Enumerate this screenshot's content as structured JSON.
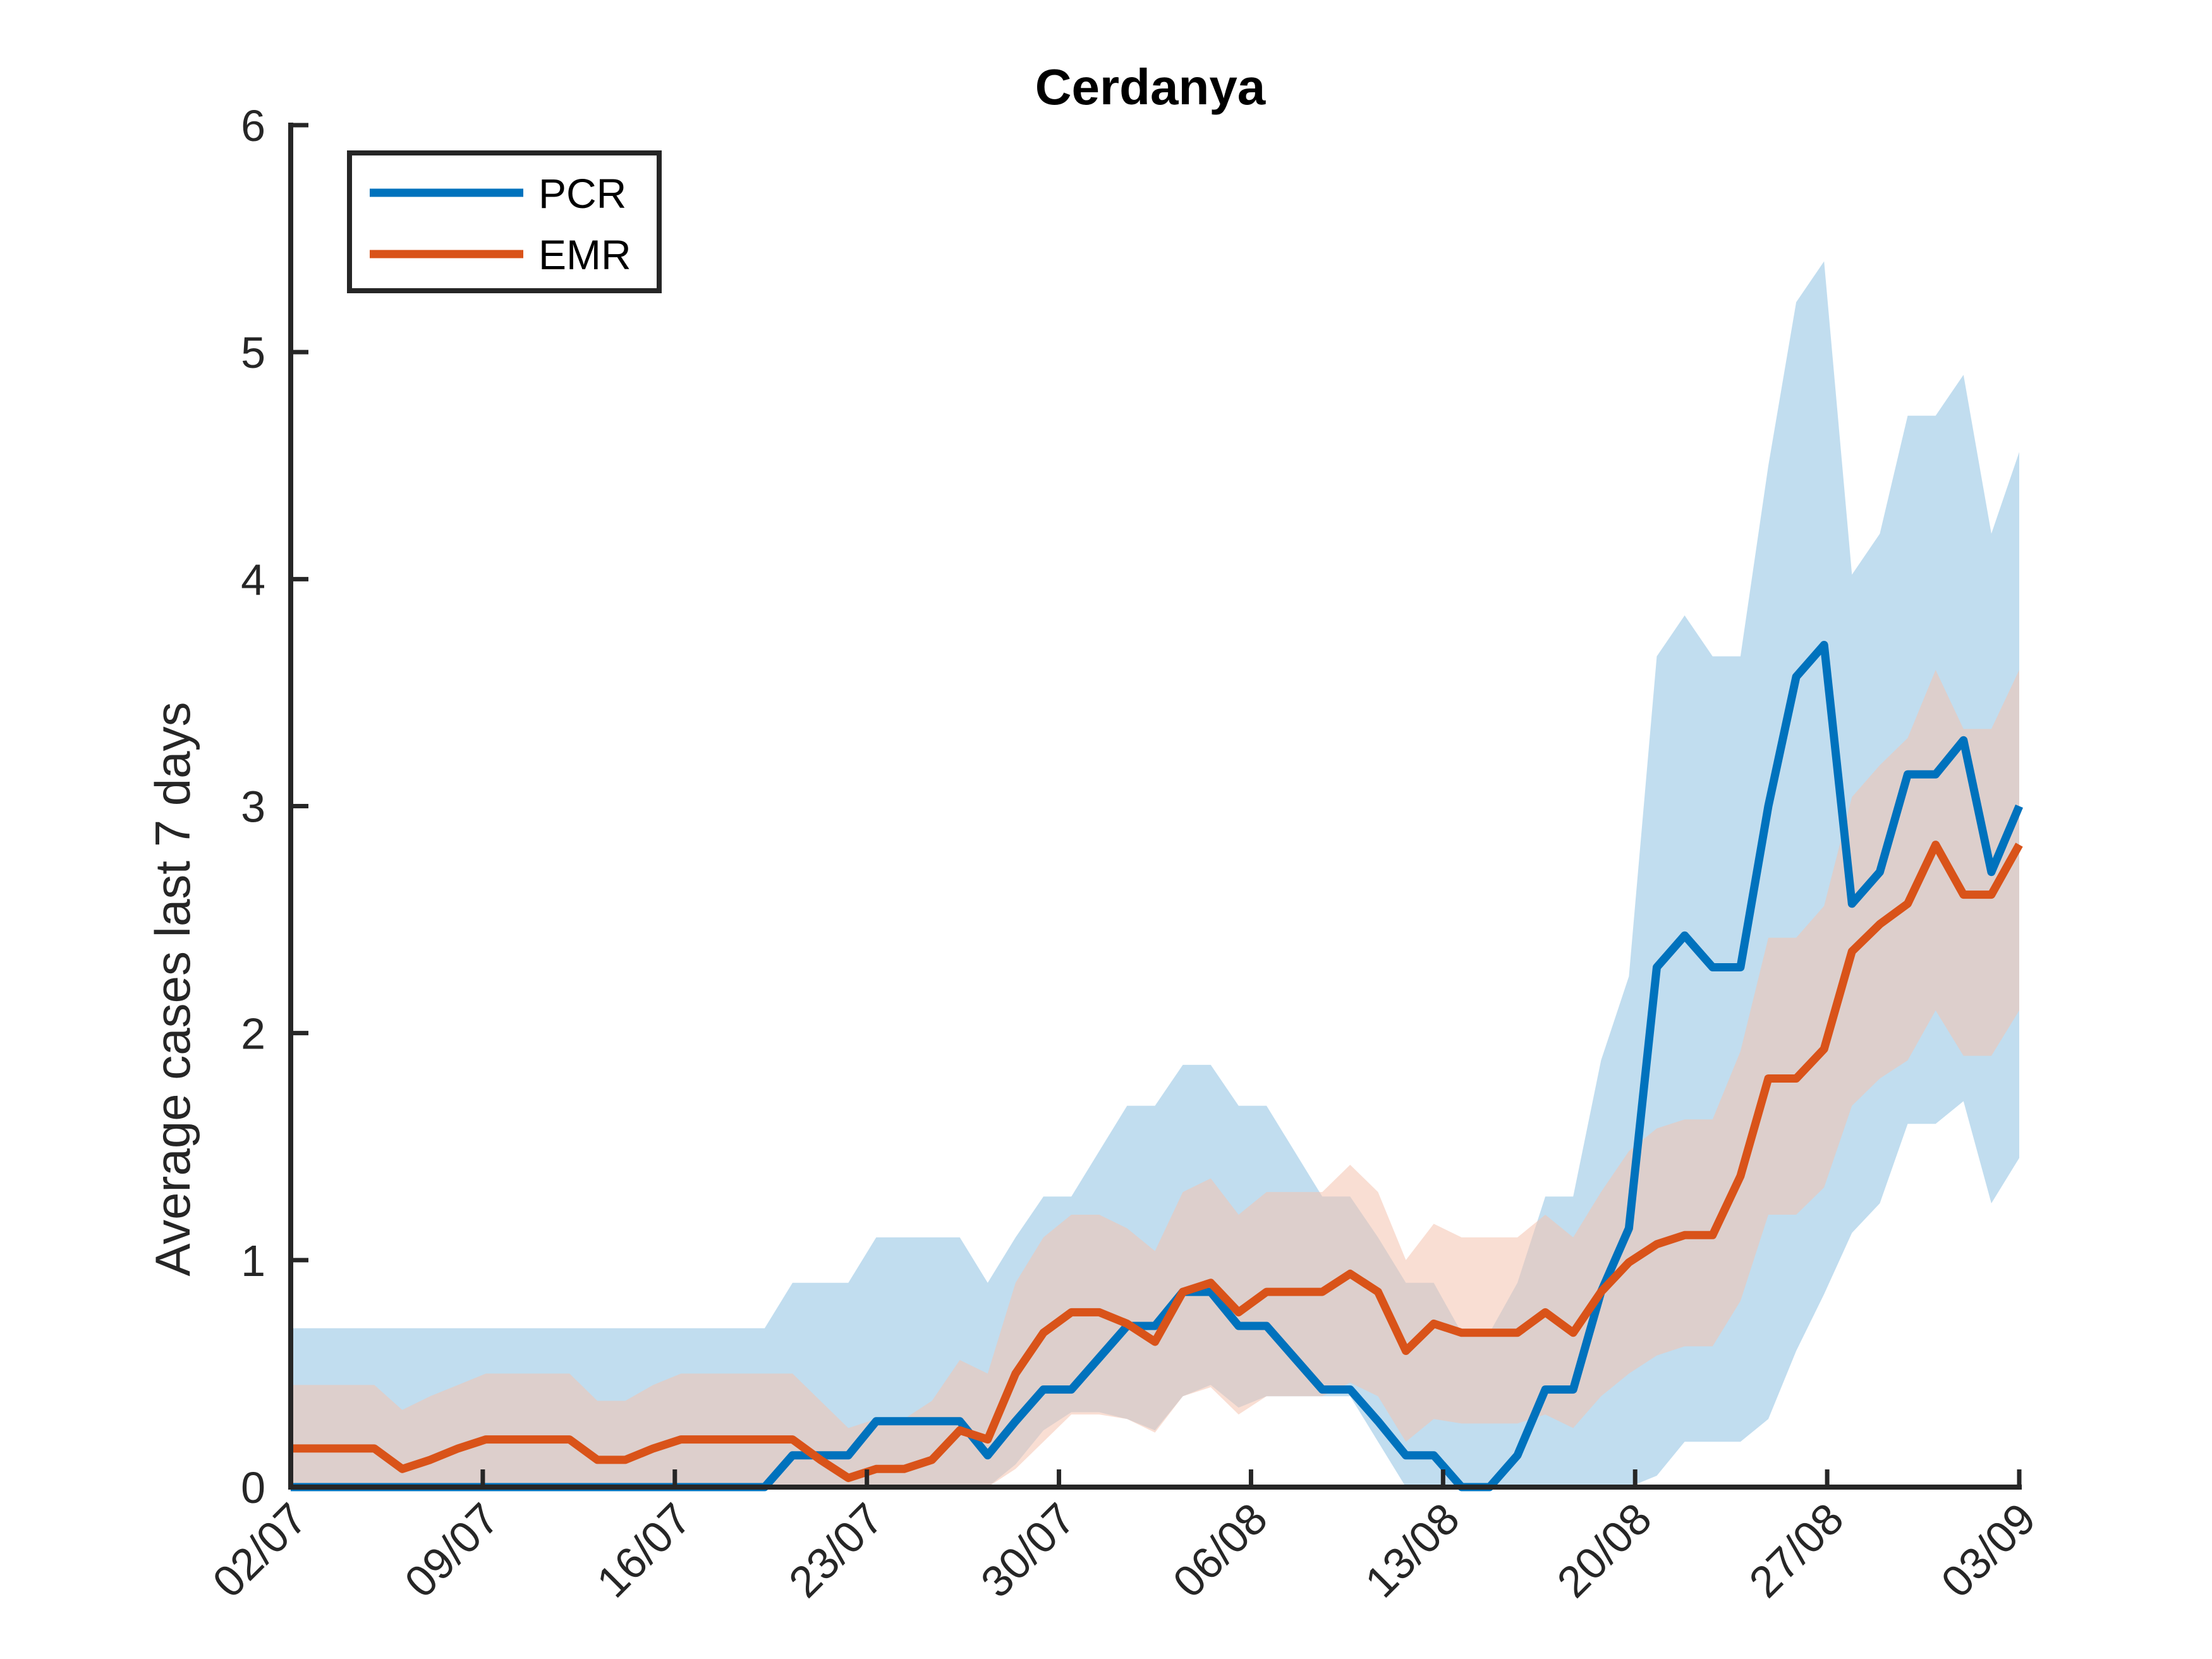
{
  "chart_data": {
    "type": "line",
    "title": "Cerdanya",
    "xlabel": "",
    "ylabel": "Average cases last 7 days",
    "ylim": [
      0,
      6
    ],
    "yticks": [
      "0",
      "1",
      "2",
      "3",
      "4",
      "5",
      "6"
    ],
    "xticks": [
      "02/07",
      "09/07",
      "16/07",
      "23/07",
      "30/07",
      "06/08",
      "13/08",
      "20/08",
      "27/08",
      "03/09"
    ],
    "x_start": "02/07",
    "x_end": "03/09",
    "legend_position": "top-left",
    "grid": false,
    "series": [
      {
        "name": "PCR",
        "color": "#0072BD",
        "band_color": "#A6CEE8",
        "values": [
          0,
          0,
          0,
          0,
          0,
          0,
          0,
          0,
          0,
          0,
          0,
          0,
          0,
          0,
          0,
          0,
          0,
          0,
          0.14,
          0.14,
          0.14,
          0.29,
          0.29,
          0.29,
          0.29,
          0.14,
          0.29,
          0.43,
          0.43,
          0.57,
          0.71,
          0.71,
          0.86,
          0.86,
          0.71,
          0.71,
          0.57,
          0.43,
          0.43,
          0.29,
          0.14,
          0.14,
          0,
          0,
          0.14,
          0.43,
          0.43,
          0.86,
          1.14,
          2.29,
          2.43,
          2.29,
          2.29,
          3.0,
          3.57,
          3.71,
          2.57,
          2.71,
          3.14,
          3.14,
          3.29,
          2.71,
          3.0
        ],
        "lower": [
          0,
          0,
          0,
          0,
          0,
          0,
          0,
          0,
          0,
          0,
          0,
          0,
          0,
          0,
          0,
          0,
          0,
          0,
          0,
          0,
          0,
          0,
          0,
          0,
          0,
          0,
          0.1,
          0.25,
          0.33,
          0.33,
          0.3,
          0.25,
          0.4,
          0.45,
          0.35,
          0.4,
          0.4,
          0.4,
          0.4,
          0.2,
          0,
          0,
          0,
          0,
          0,
          0,
          0,
          0,
          0,
          0.05,
          0.2,
          0.2,
          0.2,
          0.3,
          0.6,
          0.85,
          1.12,
          1.25,
          1.6,
          1.6,
          1.7,
          1.25,
          1.45
        ],
        "upper": [
          0.7,
          0.7,
          0.7,
          0.7,
          0.7,
          0.7,
          0.7,
          0.7,
          0.7,
          0.7,
          0.7,
          0.7,
          0.7,
          0.7,
          0.7,
          0.7,
          0.7,
          0.7,
          0.9,
          0.9,
          0.9,
          1.1,
          1.1,
          1.1,
          1.1,
          0.9,
          1.1,
          1.28,
          1.28,
          1.48,
          1.68,
          1.68,
          1.86,
          1.86,
          1.68,
          1.68,
          1.48,
          1.28,
          1.28,
          1.1,
          0.9,
          0.9,
          0.68,
          0.68,
          0.9,
          1.28,
          1.28,
          1.88,
          2.25,
          3.66,
          3.84,
          3.66,
          3.66,
          4.5,
          5.22,
          5.4,
          4.02,
          4.2,
          4.72,
          4.72,
          4.9,
          4.2,
          4.56
        ]
      },
      {
        "name": "EMR",
        "color": "#D95319",
        "band_color": "#F4C3AE",
        "values": [
          0.17,
          0.17,
          0.17,
          0.17,
          0.08,
          0.12,
          0.17,
          0.21,
          0.21,
          0.21,
          0.21,
          0.12,
          0.12,
          0.17,
          0.21,
          0.21,
          0.21,
          0.21,
          0.21,
          0.12,
          0.04,
          0.08,
          0.08,
          0.12,
          0.25,
          0.21,
          0.5,
          0.68,
          0.77,
          0.77,
          0.72,
          0.64,
          0.86,
          0.9,
          0.77,
          0.86,
          0.86,
          0.86,
          0.94,
          0.86,
          0.6,
          0.72,
          0.68,
          0.68,
          0.68,
          0.77,
          0.68,
          0.86,
          0.99,
          1.07,
          1.11,
          1.11,
          1.37,
          1.8,
          1.8,
          1.93,
          2.36,
          2.48,
          2.57,
          2.83,
          2.61,
          2.61,
          2.83
        ],
        "lower": [
          0,
          0,
          0,
          0,
          0,
          0,
          0,
          0,
          0,
          0,
          0,
          0,
          0,
          0,
          0,
          0,
          0,
          0,
          0,
          0,
          0,
          0,
          0,
          0,
          0,
          0,
          0.08,
          0.2,
          0.32,
          0.32,
          0.3,
          0.24,
          0.4,
          0.44,
          0.32,
          0.4,
          0.4,
          0.4,
          0.46,
          0.4,
          0.2,
          0.3,
          0.28,
          0.28,
          0.28,
          0.32,
          0.26,
          0.4,
          0.5,
          0.58,
          0.62,
          0.62,
          0.82,
          1.2,
          1.2,
          1.32,
          1.68,
          1.8,
          1.88,
          2.1,
          1.9,
          1.9,
          2.1
        ],
        "upper": [
          0.45,
          0.45,
          0.45,
          0.45,
          0.34,
          0.4,
          0.45,
          0.5,
          0.5,
          0.5,
          0.5,
          0.38,
          0.38,
          0.45,
          0.5,
          0.5,
          0.5,
          0.5,
          0.5,
          0.38,
          0.26,
          0.3,
          0.3,
          0.38,
          0.56,
          0.5,
          0.9,
          1.1,
          1.2,
          1.2,
          1.14,
          1.04,
          1.3,
          1.36,
          1.2,
          1.3,
          1.3,
          1.3,
          1.42,
          1.3,
          1.0,
          1.16,
          1.1,
          1.1,
          1.1,
          1.2,
          1.1,
          1.3,
          1.48,
          1.58,
          1.62,
          1.62,
          1.92,
          2.42,
          2.42,
          2.56,
          3.04,
          3.18,
          3.3,
          3.6,
          3.34,
          3.34,
          3.6
        ]
      }
    ]
  }
}
